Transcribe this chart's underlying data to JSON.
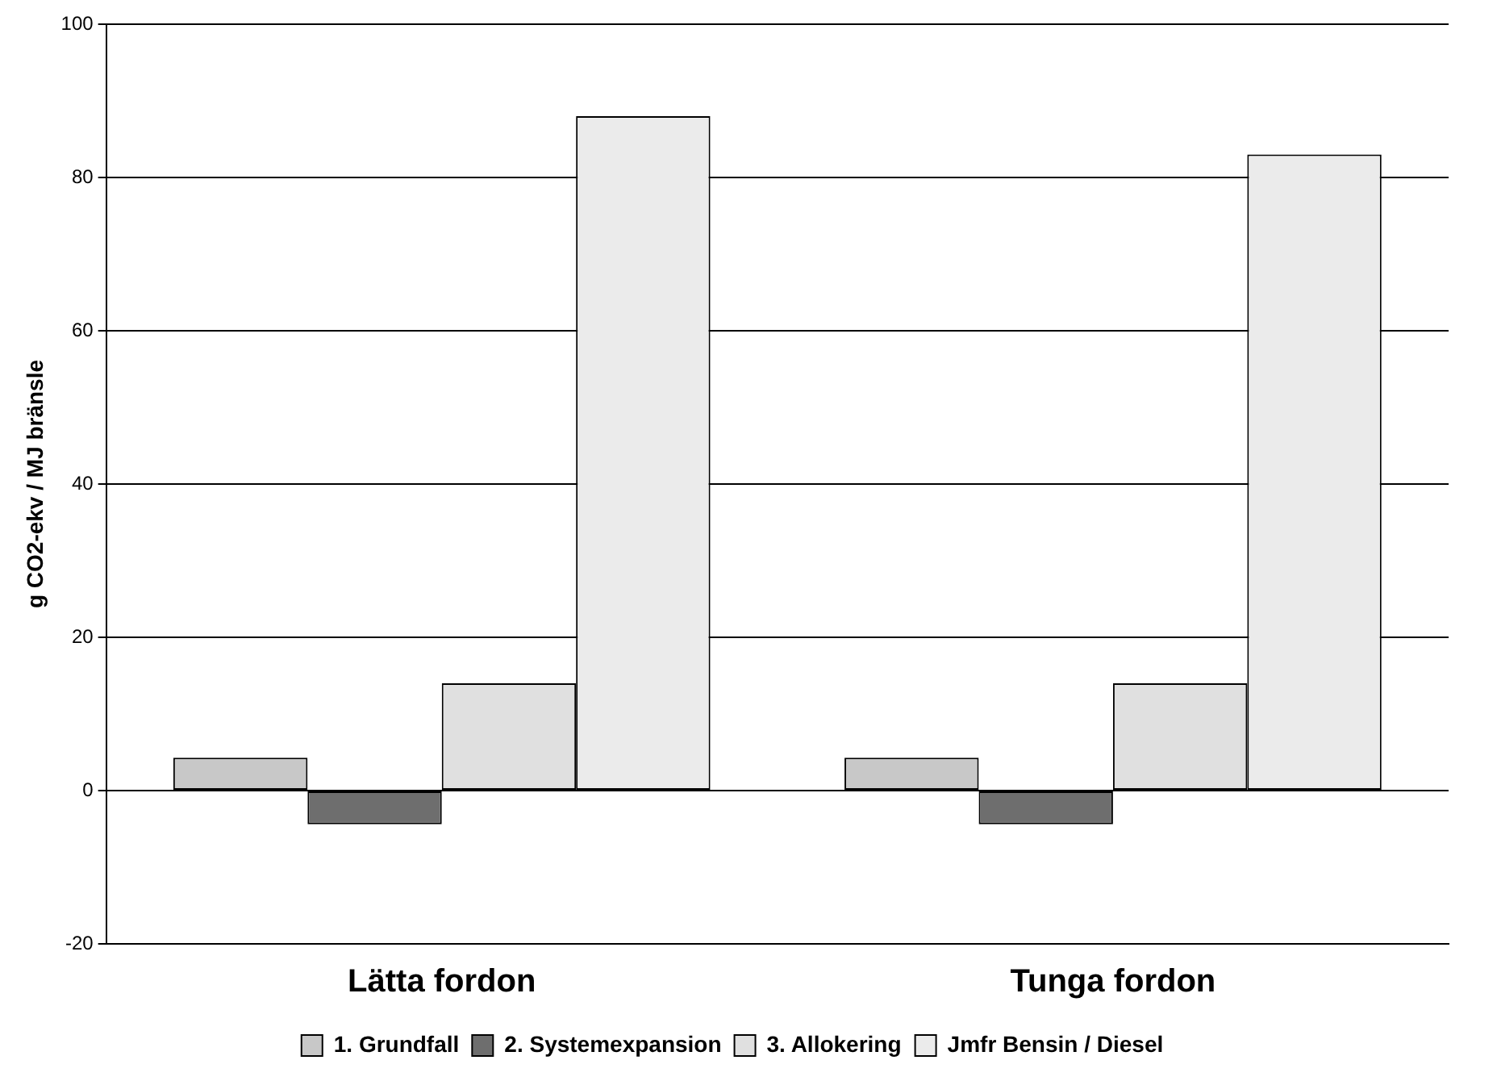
{
  "chart_data": {
    "type": "bar",
    "ylabel": "g CO2-ekv / MJ bränsle",
    "categories": [
      "Lätta fordon",
      "Tunga fordon"
    ],
    "series": [
      {
        "name": "1. Grundfall",
        "color": "#c8c8c8",
        "values": [
          4.3,
          4.3
        ]
      },
      {
        "name": "2. Systemexpansion",
        "color": "#6e6e6e",
        "values": [
          -4.4,
          -4.4
        ]
      },
      {
        "name": "3. Allokering",
        "color": "#e0e0e0",
        "values": [
          14,
          14
        ]
      },
      {
        "name": "Jmfr Bensin / Diesel",
        "color": "#ebebeb",
        "values": [
          88,
          83
        ]
      }
    ],
    "ylim": [
      -20,
      100
    ],
    "yticks": [
      -20,
      0,
      20,
      40,
      60,
      80,
      100
    ],
    "grid": "y",
    "legend": "bottom"
  }
}
